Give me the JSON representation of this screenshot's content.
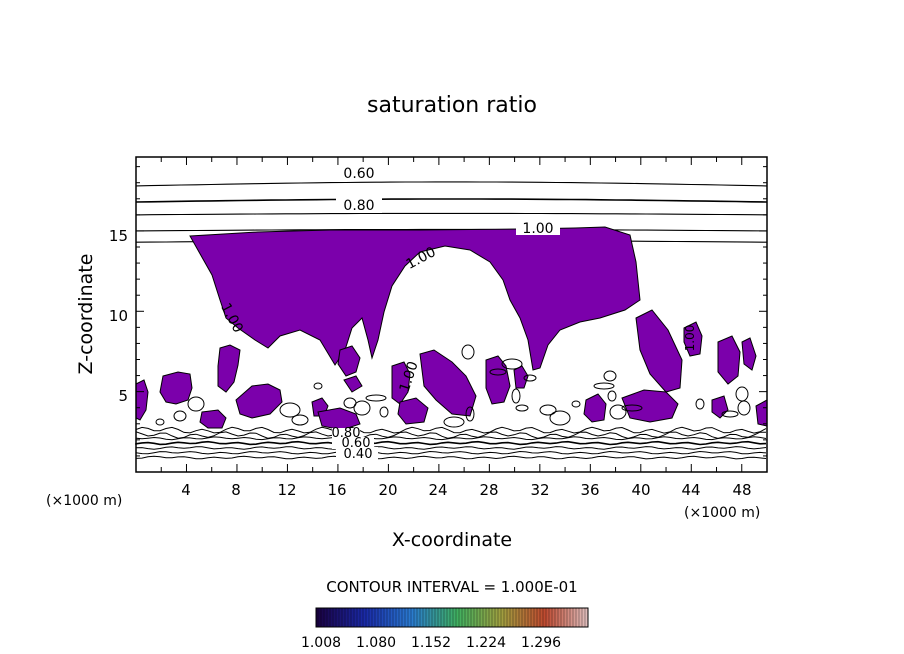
{
  "chart_data": {
    "type": "contour",
    "title": "saturation ratio",
    "xlabel": "X-coordinate",
    "ylabel": "Z-coordinate",
    "x_unit": "(×1000 m)",
    "x_unit_right": "(×1000 m)",
    "xlim": [
      0,
      50
    ],
    "ylim": [
      0,
      19.6
    ],
    "x_ticks": [
      "4",
      "8",
      "12",
      "16",
      "20",
      "24",
      "28",
      "32",
      "36",
      "40",
      "44",
      "48"
    ],
    "y_ticks": [
      "5",
      "10",
      "15"
    ],
    "contour_interval_text": "CONTOUR INTERVAL = 1.000E-01",
    "colorbar_ticks": [
      "1.008",
      "1.080",
      "1.152",
      "1.224",
      "1.296"
    ],
    "fill_color": "#7b00ab",
    "contour_labels_upper": [
      "0.60",
      "0.80",
      "1.00"
    ],
    "contour_labels_fill": [
      "1.00",
      "1.00",
      "1.00",
      "1.00"
    ],
    "contour_labels_lower": [
      "0.80",
      "0.60",
      "0.40"
    ],
    "upper_contour_levels": [
      17.8,
      16.8,
      16.0,
      15.0,
      14.3
    ],
    "lower_contour_levels": [
      2.6,
      2.3,
      2.1,
      1.8,
      1.5,
      1.2,
      0.9
    ]
  }
}
